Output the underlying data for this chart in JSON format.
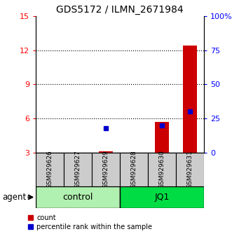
{
  "title": "GDS5172 / ILMN_2671984",
  "samples": [
    "GSM929626",
    "GSM929627",
    "GSM929629",
    "GSM929628",
    "GSM929630",
    "GSM929631"
  ],
  "count_values": [
    3.0,
    3.0,
    3.1,
    3.0,
    5.7,
    12.4
  ],
  "percentile_values": [
    null,
    null,
    18.0,
    null,
    20.0,
    30.0
  ],
  "left_ylim": [
    3,
    15
  ],
  "left_yticks": [
    3,
    6,
    9,
    12,
    15
  ],
  "right_ylim": [
    0,
    100
  ],
  "right_yticks": [
    0,
    25,
    50,
    75,
    100
  ],
  "right_yticklabels": [
    "0",
    "25",
    "50",
    "75",
    "100%"
  ],
  "bar_width": 0.5,
  "count_color": "#CC0000",
  "percentile_color": "#0000CC",
  "sample_box_color": "#CCCCCC",
  "ctrl_color": "#B0F0B0",
  "jq1_color": "#00DD44",
  "agent_label": "agent",
  "legend_count": "count",
  "legend_percentile": "percentile rank within the sample",
  "gridlines": [
    6,
    9,
    12
  ]
}
